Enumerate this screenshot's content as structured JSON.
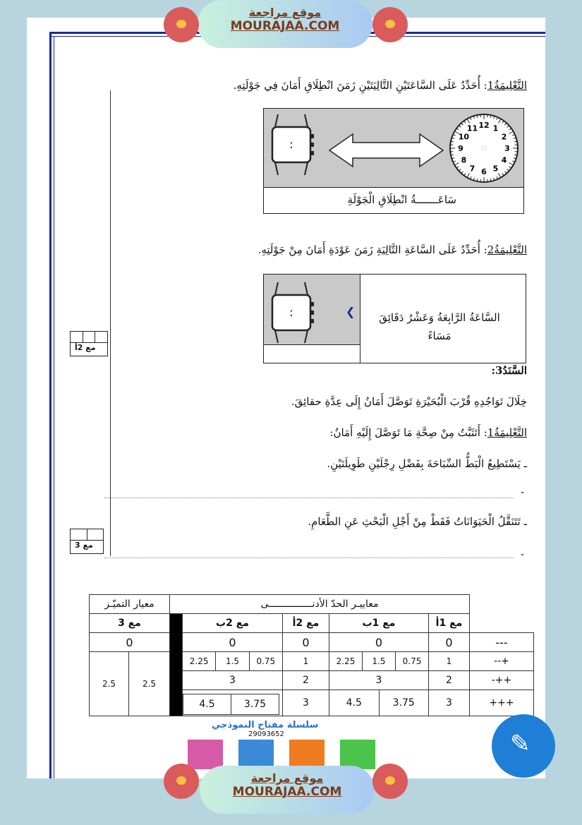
{
  "banner": {
    "arabic": "موقع مراجعة",
    "latin": "MOURAJAA.COM",
    "logo_text": "موقع مراجعة mourajaa.com"
  },
  "q1": {
    "label": "التَّعْلِيمَةُ1",
    "text": ": أُحَدِّدُ عَلَى السَّاعَتَيْنِ التَّالِيَتَيْنِ زَمَنَ انْطِلَاقِ أَمَانَ فِي جَوْلَتِهِ.",
    "caption": "سَاعَـــــــةُ انْطِلَاقِ الْجَوْلَةِ",
    "watch_display": ":",
    "clock_numbers": [
      "12",
      "1",
      "2",
      "3",
      "4",
      "5",
      "6",
      "7",
      "8",
      "9",
      "10",
      "11"
    ]
  },
  "q2": {
    "label": "التَّعْلِيمَةُ2",
    "text": ": أُحَدِّدُ عَلَى السَّاعَةِ التَّالِيَةِ زَمَنَ عَوْدَةِ أَمَانَ مِنْ جَوْلَتِهِ.",
    "time_text": "السَّاعَةُ الرَّابِعَةُ وَعَشْرُ دَقَائِقَ مَسَاءً",
    "watch_display": ":"
  },
  "mark1": {
    "label": "مع 2أ"
  },
  "mark2": {
    "label": "مع 3"
  },
  "sanad3": {
    "title": "السَّنَدُ3:",
    "text": "خِلَالَ تَوَاجُدِهِ قُرْبَ الْبُحَيْرَةِ تَوَصَّلَ أَمَانُ إِلَى عِدَّةِ حقائِقَ.",
    "instr_label": "التَّعْلِيمَةُ1",
    "instr_text": ": أَتَثَبَّتُ مِنْ صِحَّةِ مَا تَوَصَّلَ إِلَيْهِ أَمَانُ:",
    "fact1": "ـ يَسْتَطِيعُ الْبَطُّ السِّبَاحَةَ بِفَضْلِ رِجْلَيْنِ طَوِيلَتَيْنِ.",
    "fact2": "ـ تَتَنَقَّلُ الْحَيَوَانَاتُ فَقَطْ مِنْ أَجْلِ الْبَحْثِ عَنِ الطَّعَامِ.",
    "dash": "-"
  },
  "table": {
    "excellence": "معيار التميّـز",
    "minimum": "معاييـر الحدّ الأدنـــــــــــــــى",
    "cols": {
      "c3": "مع 3",
      "c2b": "مع 2ب",
      "c2a": "مع 2أ",
      "c1b": "مع 1ب",
      "c1a": "مع 1أ"
    },
    "rows": [
      {
        "label": "---",
        "c3": "0",
        "c2b": "0",
        "c2a": "0",
        "c1b": "0",
        "c1a": "0"
      },
      {
        "label": "--+",
        "c2b": [
          "2.25",
          "1.5",
          "0.75"
        ],
        "c2a": "1",
        "c1b": [
          "2.25",
          "1.5",
          "0.75"
        ],
        "c1a": "1"
      },
      {
        "label": "-++",
        "c2b": "3",
        "c2a": "2",
        "c1b": "3",
        "c1a": "2"
      },
      {
        "label": "+++",
        "c2b": [
          "4.5",
          "3.75"
        ],
        "c2a": "3",
        "c1b": [
          "4.5",
          "3.75"
        ],
        "c1a": "3"
      }
    ],
    "c3_values": [
      "2.5",
      "2.5"
    ]
  },
  "ad": {
    "title": "سلسلة مفتاح النموذجي",
    "phone": "29093652",
    "book_colors": [
      "#d65aa8",
      "#3a8ad8",
      "#f07c22",
      "#4cc34a"
    ]
  },
  "colors": {
    "border_blue": "#1a2a8c",
    "background": "#b8d5df",
    "fab": "#1f7fd6"
  }
}
